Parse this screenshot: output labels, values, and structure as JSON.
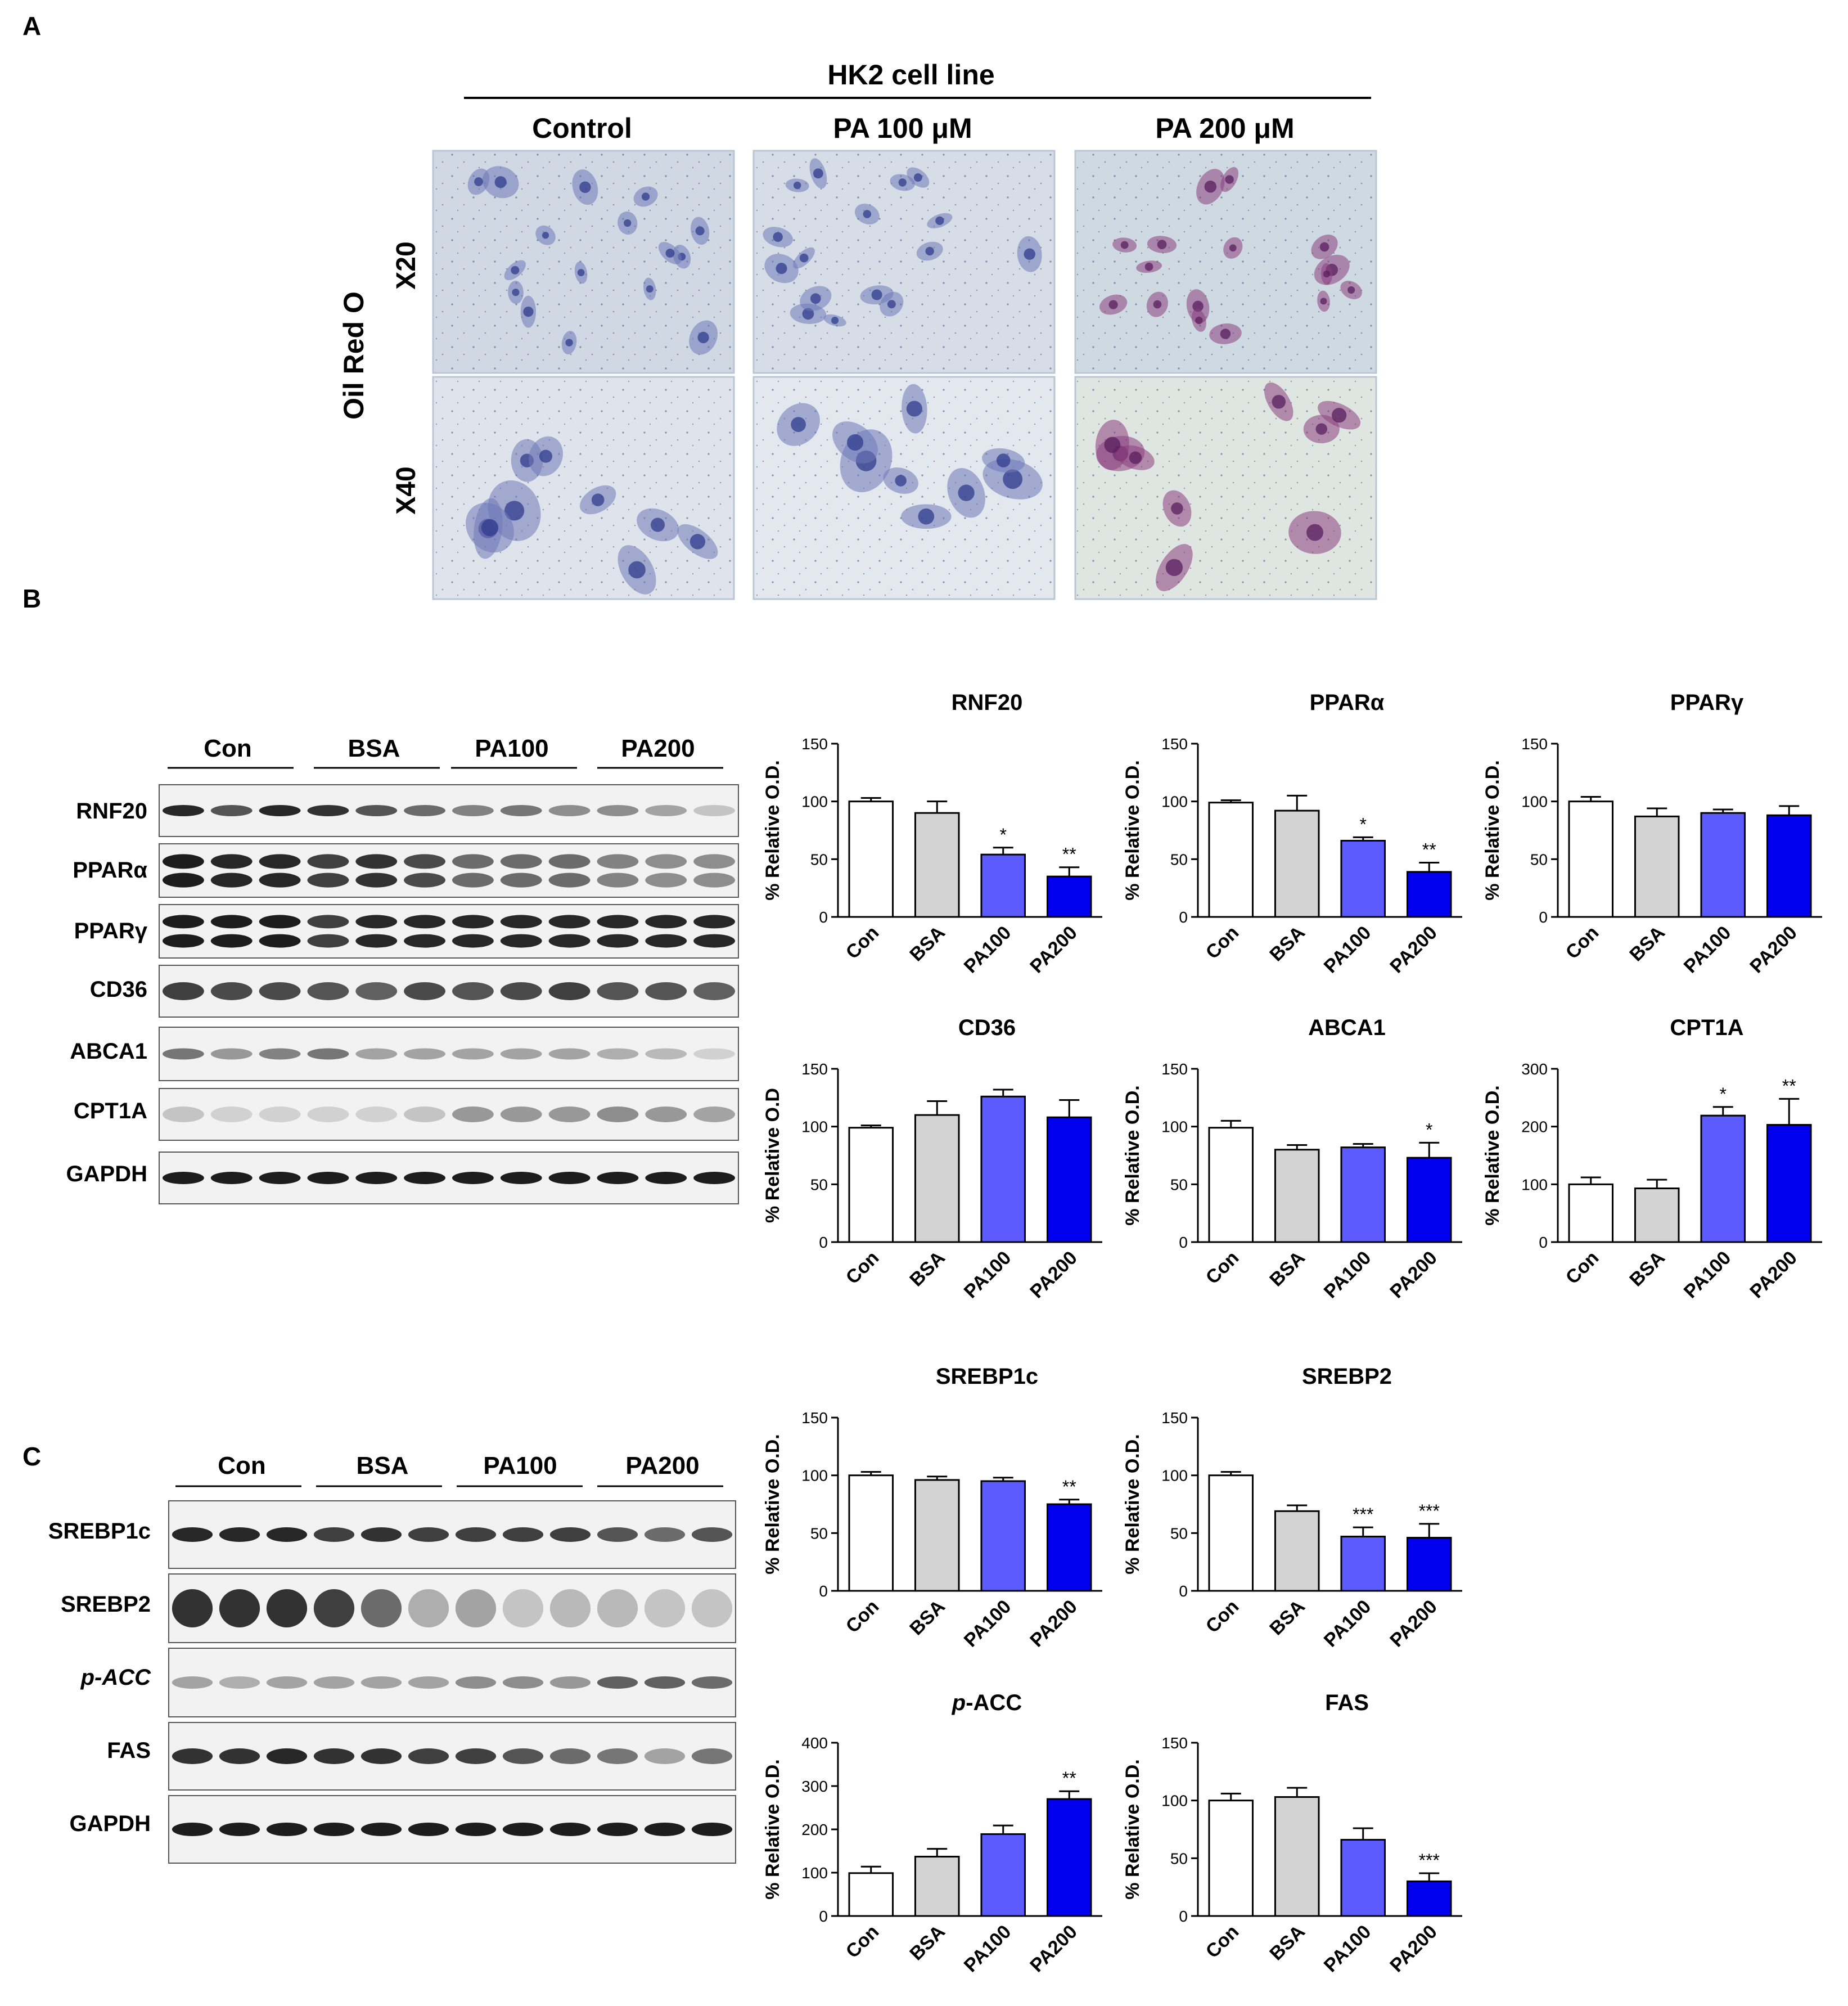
{
  "panels": {
    "a": "A",
    "b": "B",
    "c": "C"
  },
  "micro": {
    "title": "HK2 cell line",
    "columns": [
      "Control",
      "PA 100 μM",
      "PA 200 μM"
    ],
    "rows": [
      "X20",
      "X40"
    ],
    "side_label": "Oil Red O"
  },
  "blot_b": {
    "groups": [
      "Con",
      "BSA",
      "PA100",
      "PA200"
    ],
    "proteins": [
      "RNF20",
      "PPARα",
      "PPARγ",
      "CD36",
      "ABCA1",
      "CPT1A",
      "GAPDH"
    ]
  },
  "blot_c": {
    "groups": [
      "Con",
      "BSA",
      "PA100",
      "PA200"
    ],
    "proteins": [
      "SREBP1c",
      "SREBP2",
      "p-ACC",
      "FAS",
      "GAPDH"
    ]
  },
  "colors": {
    "con": "#ffffff",
    "bsa": "#d3d3d3",
    "pa100": "#5b5bff",
    "pa200": "#0000ee"
  },
  "chart_data": [
    {
      "type": "bar",
      "title": "RNF20",
      "ylabel": "% Relative O.D.",
      "categories": [
        "Con",
        "BSA",
        "PA100",
        "PA200"
      ],
      "values": [
        100,
        90,
        54,
        35
      ],
      "errors": [
        3,
        10,
        6,
        8
      ],
      "significance": [
        "",
        "",
        "*",
        "**"
      ],
      "ylim": [
        0,
        150
      ],
      "yticks": [
        0,
        50,
        100,
        150
      ]
    },
    {
      "type": "bar",
      "title": "PPARα",
      "ylabel": "% Relative O.D.",
      "categories": [
        "Con",
        "BSA",
        "PA100",
        "PA200"
      ],
      "values": [
        99,
        92,
        66,
        39
      ],
      "errors": [
        2,
        13,
        3,
        8
      ],
      "significance": [
        "",
        "",
        "*",
        "**"
      ],
      "ylim": [
        0,
        150
      ],
      "yticks": [
        0,
        50,
        100,
        150
      ]
    },
    {
      "type": "bar",
      "title": "PPARγ",
      "ylabel": "% Relative O.D.",
      "categories": [
        "Con",
        "BSA",
        "PA100",
        "PA200"
      ],
      "values": [
        100,
        87,
        90,
        88
      ],
      "errors": [
        4,
        7,
        3,
        8
      ],
      "significance": [
        "",
        "",
        "",
        ""
      ],
      "ylim": [
        0,
        150
      ],
      "yticks": [
        0,
        50,
        100,
        150
      ]
    },
    {
      "type": "bar",
      "title": "CD36",
      "ylabel": "% Relative O.D",
      "categories": [
        "Con",
        "BSA",
        "PA100",
        "PA200"
      ],
      "values": [
        99,
        110,
        126,
        108
      ],
      "errors": [
        2,
        12,
        6,
        15
      ],
      "significance": [
        "",
        "",
        "",
        ""
      ],
      "ylim": [
        0,
        150
      ],
      "yticks": [
        0,
        50,
        100,
        150
      ]
    },
    {
      "type": "bar",
      "title": "ABCA1",
      "ylabel": "% Relative O.D.",
      "categories": [
        "Con",
        "BSA",
        "PA100",
        "PA200"
      ],
      "values": [
        99,
        80,
        82,
        73
      ],
      "errors": [
        6,
        4,
        3,
        13
      ],
      "significance": [
        "",
        "",
        "",
        "*"
      ],
      "ylim": [
        0,
        150
      ],
      "yticks": [
        0,
        50,
        100,
        150
      ]
    },
    {
      "type": "bar",
      "title": "CPT1A",
      "ylabel": "% Relative O.D.",
      "categories": [
        "Con",
        "BSA",
        "PA100",
        "PA200"
      ],
      "values": [
        100,
        93,
        219,
        203
      ],
      "errors": [
        12,
        15,
        15,
        45
      ],
      "significance": [
        "",
        "",
        "*",
        "**"
      ],
      "ylim": [
        0,
        300
      ],
      "yticks": [
        0,
        100,
        200,
        300
      ]
    },
    {
      "type": "bar",
      "title": "SREBP1c",
      "ylabel": "% Relative O.D.",
      "categories": [
        "Con",
        "BSA",
        "PA100",
        "PA200"
      ],
      "values": [
        100,
        96,
        95,
        75
      ],
      "errors": [
        3,
        3,
        3,
        4
      ],
      "significance": [
        "",
        "",
        "",
        "**"
      ],
      "ylim": [
        0,
        150
      ],
      "yticks": [
        0,
        50,
        100,
        150
      ]
    },
    {
      "type": "bar",
      "title": "SREBP2",
      "ylabel": "% Relative O.D.",
      "categories": [
        "Con",
        "BSA",
        "PA100",
        "PA200"
      ],
      "values": [
        100,
        69,
        47,
        46
      ],
      "errors": [
        3,
        5,
        8,
        12
      ],
      "significance": [
        "",
        "",
        "***",
        "***"
      ],
      "ylim": [
        0,
        150
      ],
      "yticks": [
        0,
        50,
        100,
        150
      ]
    },
    {
      "type": "bar",
      "title": "p-ACC",
      "ylabel": "% Relative O.D.",
      "categories": [
        "Con",
        "BSA",
        "PA100",
        "PA200"
      ],
      "values": [
        99,
        137,
        189,
        270
      ],
      "errors": [
        15,
        18,
        20,
        18
      ],
      "significance": [
        "",
        "",
        "",
        "**"
      ],
      "ylim": [
        0,
        400
      ],
      "yticks": [
        0,
        100,
        200,
        300,
        400
      ]
    },
    {
      "type": "bar",
      "title": "FAS",
      "ylabel": "% Relative O.D.",
      "categories": [
        "Con",
        "BSA",
        "PA100",
        "PA200"
      ],
      "values": [
        100,
        103,
        66,
        30
      ],
      "errors": [
        6,
        8,
        10,
        7
      ],
      "significance": [
        "",
        "",
        "",
        "***"
      ],
      "ylim": [
        0,
        150
      ],
      "yticks": [
        0,
        50,
        100,
        150
      ]
    }
  ]
}
